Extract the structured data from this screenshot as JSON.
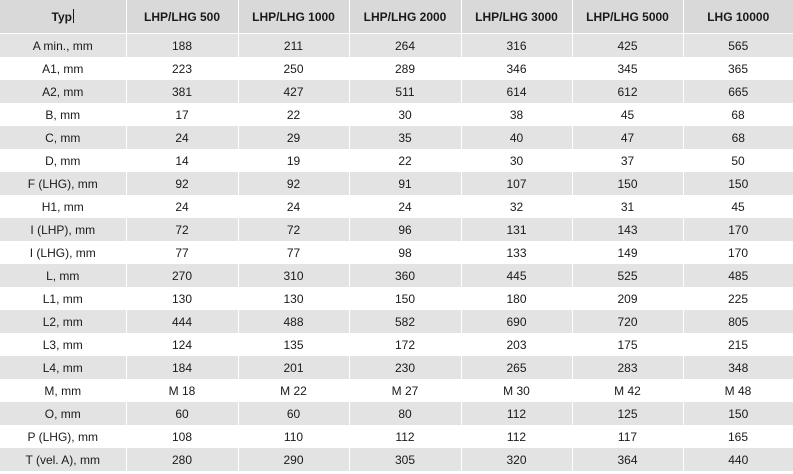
{
  "table": {
    "headers": [
      "Typ",
      "LHP/LHG 500",
      "LHP/LHG 1000",
      "LHP/LHG 2000",
      "LHP/LHG 3000",
      "LHP/LHG 5000",
      "LHG 10000"
    ],
    "rows": [
      [
        "A min., mm",
        "188",
        "211",
        "264",
        "316",
        "425",
        "565"
      ],
      [
        "A1, mm",
        "223",
        "250",
        "289",
        "346",
        "345",
        "365"
      ],
      [
        "A2, mm",
        "381",
        "427",
        "511",
        "614",
        "612",
        "665"
      ],
      [
        "B, mm",
        "17",
        "22",
        "30",
        "38",
        "45",
        "68"
      ],
      [
        "C, mm",
        "24",
        "29",
        "35",
        "40",
        "47",
        "68"
      ],
      [
        "D, mm",
        "14",
        "19",
        "22",
        "30",
        "37",
        "50"
      ],
      [
        "F (LHG), mm",
        "92",
        "92",
        "91",
        "107",
        "150",
        "150"
      ],
      [
        "H1, mm",
        "24",
        "24",
        "24",
        "32",
        "31",
        "45"
      ],
      [
        "I (LHP), mm",
        "72",
        "72",
        "96",
        "131",
        "143",
        "170"
      ],
      [
        "I (LHG), mm",
        "77",
        "77",
        "98",
        "133",
        "149",
        "170"
      ],
      [
        "L, mm",
        "270",
        "310",
        "360",
        "445",
        "525",
        "485"
      ],
      [
        "L1, mm",
        "130",
        "130",
        "150",
        "180",
        "209",
        "225"
      ],
      [
        "L2, mm",
        "444",
        "488",
        "582",
        "690",
        "720",
        "805"
      ],
      [
        "L3, mm",
        "124",
        "135",
        "172",
        "203",
        "175",
        "215"
      ],
      [
        "L4, mm",
        "184",
        "201",
        "230",
        "265",
        "283",
        "348"
      ],
      [
        "M, mm",
        "M 18",
        "M 22",
        "M 27",
        "M 30",
        "M 42",
        "M 48"
      ],
      [
        "O, mm",
        "60",
        "60",
        "80",
        "112",
        "125",
        "150"
      ],
      [
        "P (LHG), mm",
        "108",
        "110",
        "112",
        "112",
        "117",
        "165"
      ],
      [
        "T (vel. A), mm",
        "280",
        "290",
        "305",
        "320",
        "364",
        "440"
      ]
    ]
  }
}
